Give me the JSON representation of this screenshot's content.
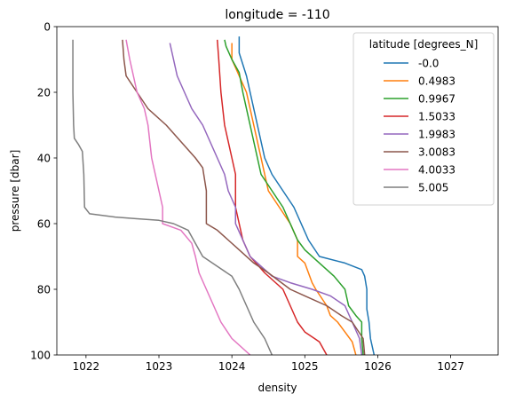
{
  "chart_data": {
    "type": "line",
    "title": "longitude = -110",
    "xlabel": "density",
    "ylabel": "pressure [dbar]",
    "xlim": [
      1021.6,
      1027.65
    ],
    "ylim": [
      100,
      0
    ],
    "y_inverted": true,
    "xticks": [
      1022,
      1023,
      1024,
      1025,
      1026,
      1027
    ],
    "yticks": [
      0,
      20,
      40,
      60,
      80,
      100
    ],
    "grid": false,
    "legend": {
      "title": "latitude [degrees_N]",
      "placement": "top-right"
    },
    "series": [
      {
        "name": "-0.0",
        "color": "#1f77b4",
        "points": [
          [
            1024.1,
            3
          ],
          [
            1024.1,
            8
          ],
          [
            1024.2,
            15
          ],
          [
            1024.25,
            20
          ],
          [
            1024.35,
            30
          ],
          [
            1024.45,
            40
          ],
          [
            1024.55,
            45
          ],
          [
            1024.7,
            50
          ],
          [
            1024.85,
            55
          ],
          [
            1024.95,
            60
          ],
          [
            1025.05,
            65
          ],
          [
            1025.2,
            70
          ],
          [
            1025.55,
            72
          ],
          [
            1025.78,
            74
          ],
          [
            1025.82,
            76
          ],
          [
            1025.85,
            80
          ],
          [
            1025.85,
            86
          ],
          [
            1025.88,
            90
          ],
          [
            1025.9,
            95
          ],
          [
            1025.95,
            100
          ]
        ]
      },
      {
        "name": "0.4983",
        "color": "#ff7f0e",
        "points": [
          [
            1024.0,
            5
          ],
          [
            1024.0,
            10
          ],
          [
            1024.1,
            15
          ],
          [
            1024.2,
            20
          ],
          [
            1024.3,
            30
          ],
          [
            1024.4,
            40
          ],
          [
            1024.45,
            45
          ],
          [
            1024.5,
            50
          ],
          [
            1024.65,
            55
          ],
          [
            1024.8,
            60
          ],
          [
            1024.9,
            65
          ],
          [
            1024.9,
            70
          ],
          [
            1025.0,
            72
          ],
          [
            1025.05,
            75
          ],
          [
            1025.1,
            78
          ],
          [
            1025.15,
            80
          ],
          [
            1025.3,
            85
          ],
          [
            1025.35,
            88
          ],
          [
            1025.45,
            90
          ],
          [
            1025.55,
            93
          ],
          [
            1025.65,
            96
          ],
          [
            1025.7,
            100
          ]
        ]
      },
      {
        "name": "0.9967",
        "color": "#2ca02c",
        "points": [
          [
            1023.9,
            4
          ],
          [
            1023.92,
            6
          ],
          [
            1024.0,
            10
          ],
          [
            1024.1,
            14
          ],
          [
            1024.15,
            20
          ],
          [
            1024.25,
            30
          ],
          [
            1024.35,
            40
          ],
          [
            1024.4,
            45
          ],
          [
            1024.55,
            50
          ],
          [
            1024.7,
            55
          ],
          [
            1024.8,
            60
          ],
          [
            1024.9,
            65
          ],
          [
            1025.0,
            68
          ],
          [
            1025.2,
            72
          ],
          [
            1025.4,
            76
          ],
          [
            1025.55,
            80
          ],
          [
            1025.6,
            85
          ],
          [
            1025.7,
            88
          ],
          [
            1025.78,
            90
          ],
          [
            1025.78,
            95
          ],
          [
            1025.8,
            100
          ]
        ]
      },
      {
        "name": "1.5033",
        "color": "#d62728",
        "points": [
          [
            1023.8,
            4
          ],
          [
            1023.82,
            10
          ],
          [
            1023.85,
            20
          ],
          [
            1023.9,
            30
          ],
          [
            1024.0,
            40
          ],
          [
            1024.05,
            45
          ],
          [
            1024.05,
            55
          ],
          [
            1024.1,
            60
          ],
          [
            1024.15,
            65
          ],
          [
            1024.25,
            70
          ],
          [
            1024.45,
            75
          ],
          [
            1024.7,
            80
          ],
          [
            1024.8,
            85
          ],
          [
            1024.9,
            90
          ],
          [
            1025.0,
            93
          ],
          [
            1025.2,
            96
          ],
          [
            1025.3,
            100
          ]
        ]
      },
      {
        "name": "1.9983",
        "color": "#9467bd",
        "points": [
          [
            1023.15,
            5
          ],
          [
            1023.2,
            10
          ],
          [
            1023.25,
            15
          ],
          [
            1023.35,
            20
          ],
          [
            1023.45,
            25
          ],
          [
            1023.6,
            30
          ],
          [
            1023.7,
            35
          ],
          [
            1023.8,
            40
          ],
          [
            1023.9,
            45
          ],
          [
            1023.95,
            50
          ],
          [
            1024.05,
            55
          ],
          [
            1024.05,
            60
          ],
          [
            1024.15,
            65
          ],
          [
            1024.25,
            70
          ],
          [
            1024.4,
            73
          ],
          [
            1024.55,
            76
          ],
          [
            1024.8,
            78
          ],
          [
            1025.1,
            80
          ],
          [
            1025.35,
            82
          ],
          [
            1025.55,
            85
          ],
          [
            1025.65,
            90
          ],
          [
            1025.75,
            95
          ],
          [
            1025.78,
            100
          ]
        ]
      },
      {
        "name": "3.0083",
        "color": "#8c564b",
        "points": [
          [
            1022.5,
            4
          ],
          [
            1022.52,
            10
          ],
          [
            1022.55,
            15
          ],
          [
            1022.7,
            20
          ],
          [
            1022.85,
            25
          ],
          [
            1023.1,
            30
          ],
          [
            1023.3,
            35
          ],
          [
            1023.5,
            40
          ],
          [
            1023.6,
            43
          ],
          [
            1023.65,
            50
          ],
          [
            1023.65,
            60
          ],
          [
            1023.8,
            62
          ],
          [
            1023.95,
            65
          ],
          [
            1024.1,
            68
          ],
          [
            1024.3,
            72
          ],
          [
            1024.5,
            75
          ],
          [
            1024.8,
            80
          ],
          [
            1025.0,
            82
          ],
          [
            1025.3,
            85
          ],
          [
            1025.5,
            88
          ],
          [
            1025.65,
            90
          ],
          [
            1025.8,
            95
          ],
          [
            1025.82,
            100
          ]
        ]
      },
      {
        "name": "4.0033",
        "color": "#e377c2",
        "points": [
          [
            1022.55,
            4
          ],
          [
            1022.6,
            10
          ],
          [
            1022.65,
            15
          ],
          [
            1022.7,
            20
          ],
          [
            1022.8,
            25
          ],
          [
            1022.85,
            30
          ],
          [
            1022.9,
            40
          ],
          [
            1022.95,
            45
          ],
          [
            1023.0,
            50
          ],
          [
            1023.05,
            55
          ],
          [
            1023.05,
            60
          ],
          [
            1023.3,
            62
          ],
          [
            1023.45,
            66
          ],
          [
            1023.5,
            70
          ],
          [
            1023.55,
            75
          ],
          [
            1023.65,
            80
          ],
          [
            1023.75,
            85
          ],
          [
            1023.85,
            90
          ],
          [
            1024.0,
            95
          ],
          [
            1024.25,
            100
          ]
        ]
      },
      {
        "name": "5.005",
        "color": "#7f7f7f",
        "points": [
          [
            1021.82,
            4
          ],
          [
            1021.82,
            10
          ],
          [
            1021.82,
            20
          ],
          [
            1021.83,
            30
          ],
          [
            1021.84,
            34
          ],
          [
            1021.9,
            36
          ],
          [
            1021.95,
            38
          ],
          [
            1021.97,
            45
          ],
          [
            1021.98,
            55
          ],
          [
            1022.05,
            57
          ],
          [
            1022.4,
            58
          ],
          [
            1022.7,
            58.5
          ],
          [
            1023.0,
            59
          ],
          [
            1023.2,
            60
          ],
          [
            1023.4,
            62
          ],
          [
            1023.5,
            66
          ],
          [
            1023.6,
            70
          ],
          [
            1023.8,
            73
          ],
          [
            1024.0,
            76
          ],
          [
            1024.1,
            80
          ],
          [
            1024.2,
            85
          ],
          [
            1024.3,
            90
          ],
          [
            1024.45,
            95
          ],
          [
            1024.55,
            100
          ]
        ]
      }
    ]
  }
}
